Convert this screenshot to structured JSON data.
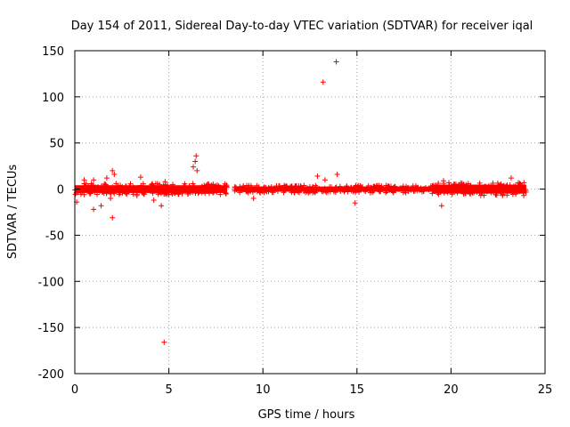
{
  "chart_data": {
    "type": "scatter",
    "title": "Day 154 of 2011, Sidereal Day-to-day VTEC variation (SDTVAR) for receiver iqal",
    "xlabel": "GPS time / hours",
    "ylabel": "SDTVAR / TECUs",
    "xlim": [
      0,
      25
    ],
    "ylim": [
      -200,
      150
    ],
    "xticks": [
      0,
      5,
      10,
      15,
      20,
      25
    ],
    "yticks": [
      -200,
      -150,
      -100,
      -50,
      0,
      50,
      100,
      150
    ],
    "grid": true,
    "marker": "+",
    "color": "#ff0000",
    "band_segments": [
      {
        "x_start": 0.0,
        "x_end": 8.1,
        "spread": 6
      },
      {
        "x_start": 8.5,
        "x_end": 19.0,
        "spread": 4
      },
      {
        "x_start": 19.0,
        "x_end": 24.0,
        "spread": 7
      }
    ],
    "series": [
      {
        "name": "SDTVAR",
        "x": [
          0.1,
          0.5,
          1.0,
          1.0,
          1.4,
          1.7,
          1.9,
          2.0,
          2.0,
          2.1,
          3.3,
          3.5,
          4.2,
          4.6,
          4.75,
          4.8,
          6.3,
          6.4,
          6.45,
          6.5,
          9.5,
          12.9,
          13.2,
          13.3,
          13.9,
          13.95,
          14.9,
          19.5,
          19.6,
          23.2
        ],
        "y": [
          -14,
          10,
          -22,
          10,
          -18,
          12,
          -10,
          -31,
          20,
          16,
          -7,
          13,
          -12,
          -18,
          -166,
          8,
          24,
          30,
          36,
          20,
          -10,
          14,
          116,
          10,
          138,
          16,
          -15,
          -18,
          9,
          12
        ]
      }
    ]
  }
}
